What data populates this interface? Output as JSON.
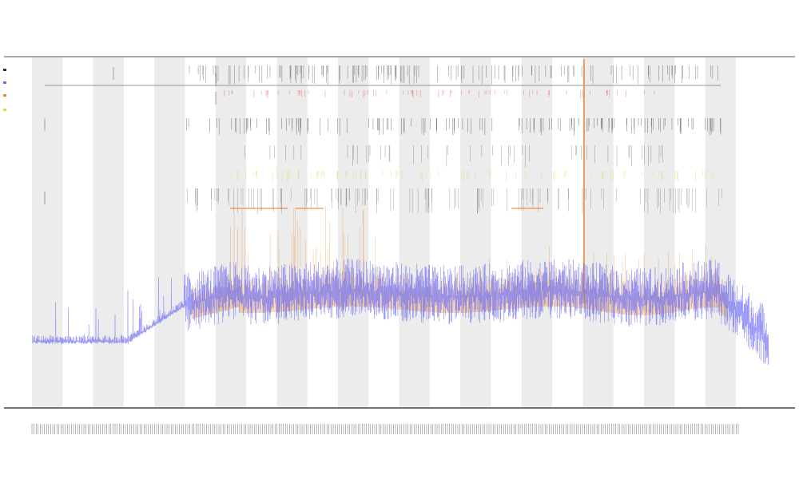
{
  "chart_data": {
    "type": "line",
    "title": "",
    "subtitle_lines": [],
    "xlabel": "",
    "ylabel": "",
    "grid": false,
    "band_count": 12,
    "colors": {
      "band": "#ececec",
      "line_primary": "#6e6ef5",
      "line_secondary": "#f08a2a",
      "event_dark": "#333333",
      "event_red": "#e85555",
      "event_yellow": "#d8d84a",
      "event_orange": "#f07a20",
      "axis": "#222222"
    },
    "series": [
      {
        "name": "",
        "color": "#6e6ef5"
      },
      {
        "name": "",
        "color": "#f08a2a"
      }
    ]
  }
}
